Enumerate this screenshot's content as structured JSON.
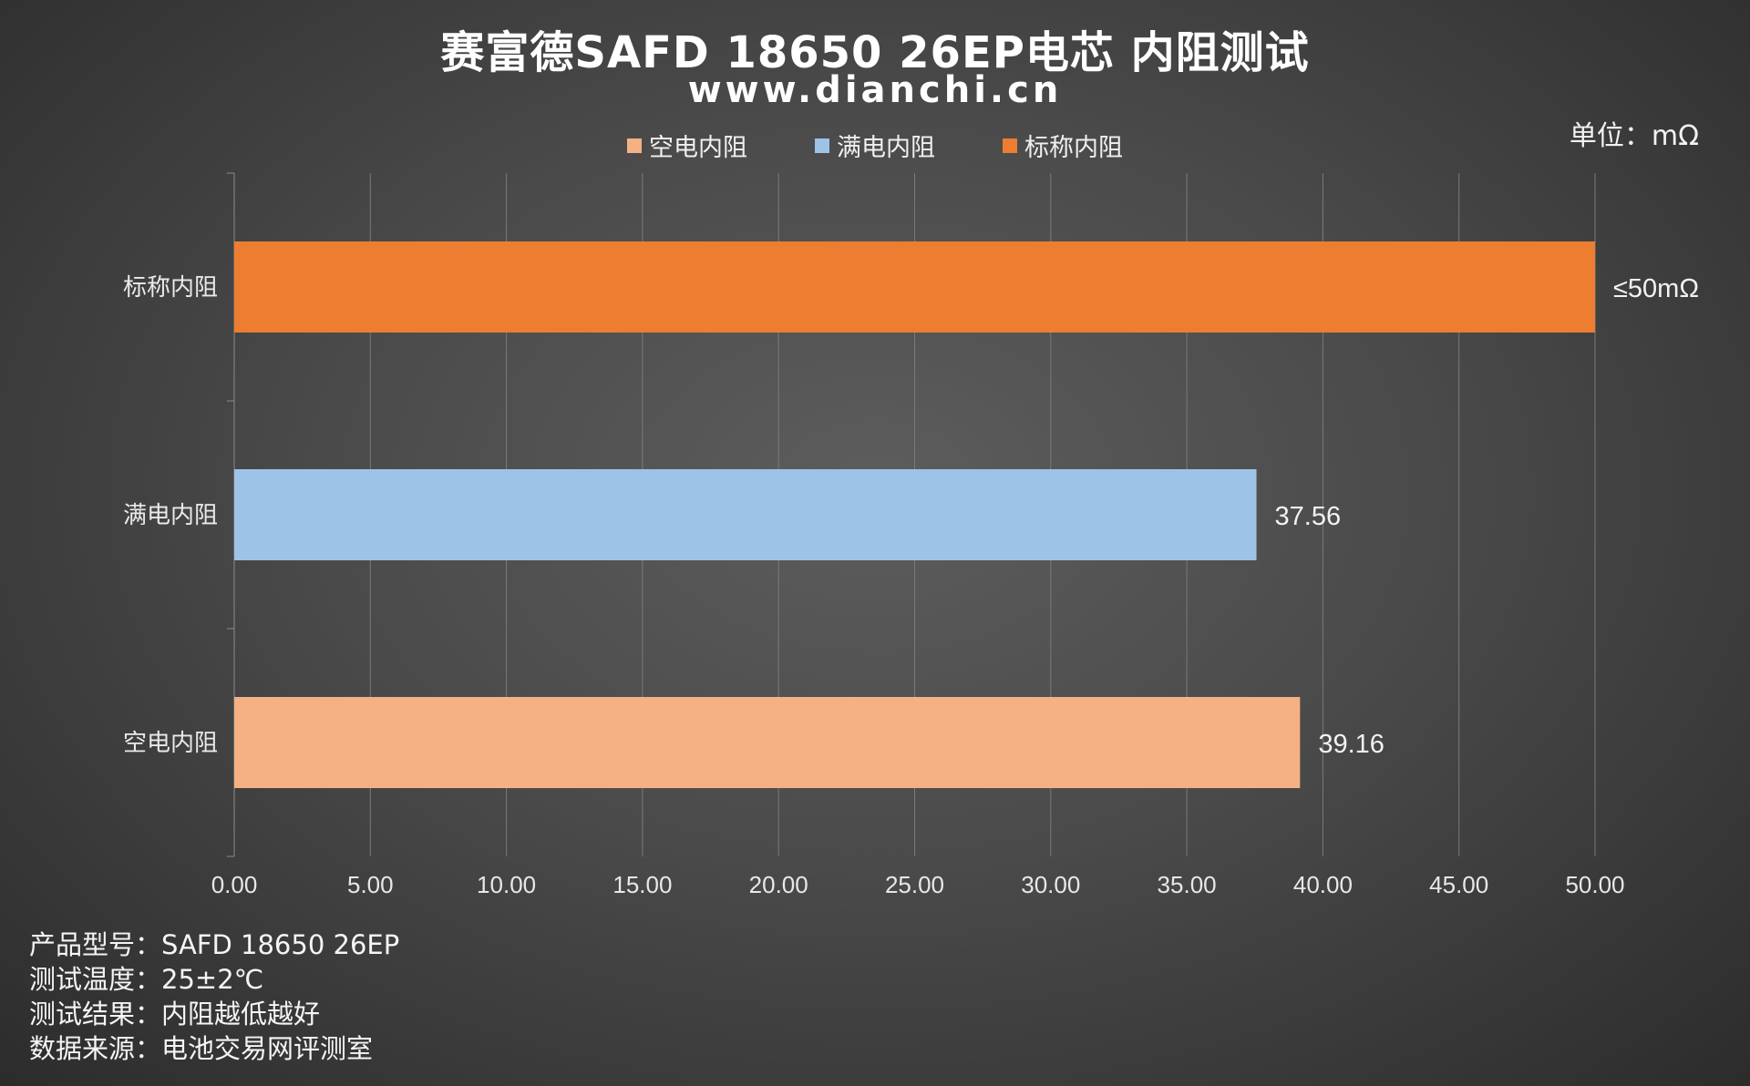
{
  "header": {
    "title": "赛富德SAFD 18650 26EP电芯 内阻测试",
    "site": "www.dianchi.cn",
    "unit": "单位：mΩ"
  },
  "legend": [
    {
      "label": "空电内阻",
      "color": "#f4b183"
    },
    {
      "label": "满电内阻",
      "color": "#9dc3e6"
    },
    {
      "label": "标称内阻",
      "color": "#ed7d31"
    }
  ],
  "chart_data": {
    "type": "bar",
    "orientation": "horizontal",
    "categories": [
      "标称内阻",
      "满电内阻",
      "空电内阻"
    ],
    "values": [
      50,
      37.56,
      39.16
    ],
    "data_labels": [
      "≤50mΩ",
      "37.56",
      "39.16"
    ],
    "colors": [
      "#ed7d31",
      "#9dc3e6",
      "#f4b183"
    ],
    "xlim": [
      0,
      50
    ],
    "x_ticks": [
      "0.00",
      "5.00",
      "10.00",
      "15.00",
      "20.00",
      "25.00",
      "30.00",
      "35.00",
      "40.00",
      "45.00",
      "50.00"
    ],
    "grid": true
  },
  "footer": [
    {
      "key": "产品型号：",
      "value": "SAFD 18650 26EP"
    },
    {
      "key": "测试温度：",
      "value": "25±2℃"
    },
    {
      "key": "测试结果：",
      "value": "内阻越低越好"
    },
    {
      "key": "数据来源：",
      "value": "电池交易网评测室"
    }
  ]
}
